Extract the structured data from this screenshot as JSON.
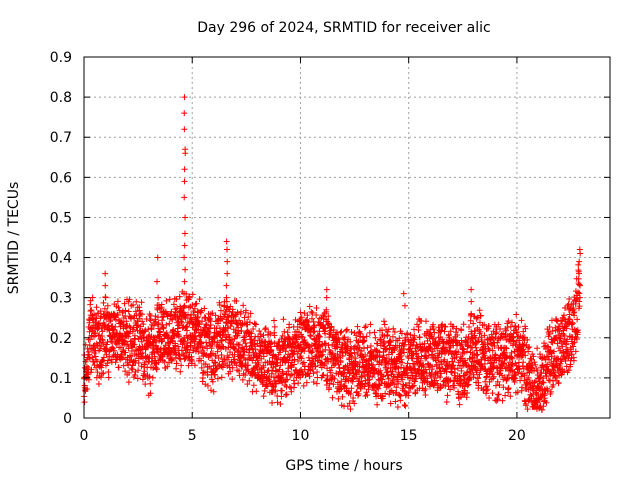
{
  "chart_data": {
    "type": "scatter",
    "title": "Day 296 of 2024, SRMTID for receiver alic",
    "xlabel": "GPS time / hours",
    "ylabel": "SRMTID / TECUs",
    "xlim": [
      0,
      24.3
    ],
    "ylim": [
      0,
      0.9
    ],
    "xticks": [
      0,
      5,
      10,
      15,
      20
    ],
    "yticks": [
      0,
      0.1,
      0.2,
      0.3,
      0.4,
      0.5,
      0.6,
      0.7,
      0.8,
      0.9
    ],
    "grid": true,
    "marker": "plus",
    "series": [
      {
        "name": "SRMTID",
        "color": "#ff0000",
        "segments": [
          [
            0.0,
            0.07
          ],
          [
            0.3,
            0.22
          ],
          [
            0.6,
            0.18
          ],
          [
            1.0,
            0.2
          ],
          [
            1.5,
            0.21
          ],
          [
            2.0,
            0.19
          ],
          [
            2.5,
            0.2
          ],
          [
            3.0,
            0.16
          ],
          [
            3.5,
            0.21
          ],
          [
            4.0,
            0.2
          ],
          [
            4.5,
            0.22
          ],
          [
            5.0,
            0.24
          ],
          [
            5.5,
            0.18
          ],
          [
            6.0,
            0.16
          ],
          [
            6.5,
            0.22
          ],
          [
            7.0,
            0.19
          ],
          [
            7.5,
            0.17
          ],
          [
            8.0,
            0.15
          ],
          [
            8.5,
            0.14
          ],
          [
            9.0,
            0.13
          ],
          [
            9.5,
            0.15
          ],
          [
            10.0,
            0.18
          ],
          [
            10.5,
            0.17
          ],
          [
            11.0,
            0.18
          ],
          [
            11.5,
            0.15
          ],
          [
            12.0,
            0.12
          ],
          [
            12.5,
            0.13
          ],
          [
            13.0,
            0.14
          ],
          [
            13.5,
            0.13
          ],
          [
            14.0,
            0.15
          ],
          [
            14.5,
            0.12
          ],
          [
            15.0,
            0.14
          ],
          [
            15.5,
            0.15
          ],
          [
            16.0,
            0.15
          ],
          [
            16.5,
            0.14
          ],
          [
            17.0,
            0.14
          ],
          [
            17.5,
            0.13
          ],
          [
            18.0,
            0.17
          ],
          [
            18.5,
            0.16
          ],
          [
            19.0,
            0.14
          ],
          [
            19.5,
            0.15
          ],
          [
            20.0,
            0.17
          ],
          [
            20.5,
            0.12
          ],
          [
            20.8,
            0.05
          ],
          [
            21.0,
            0.09
          ],
          [
            21.5,
            0.15
          ],
          [
            22.0,
            0.16
          ],
          [
            22.5,
            0.21
          ],
          [
            22.9,
            0.3
          ]
        ],
        "spikes": [
          {
            "x": 4.65,
            "values": [
              0.8,
              0.76,
              0.72,
              0.67,
              0.66,
              0.62,
              0.59,
              0.55,
              0.5,
              0.46,
              0.43,
              0.4,
              0.37,
              0.34,
              0.31,
              0.28
            ]
          },
          {
            "x": 6.6,
            "values": [
              0.44,
              0.42,
              0.39,
              0.36,
              0.33,
              0.3,
              0.27
            ]
          },
          {
            "x": 3.4,
            "values": [
              0.4,
              0.34,
              0.3,
              0.27
            ]
          },
          {
            "x": 22.9,
            "values": [
              0.42,
              0.41,
              0.39,
              0.36,
              0.33,
              0.3
            ]
          },
          {
            "x": 1.0,
            "values": [
              0.36,
              0.33,
              0.3
            ]
          },
          {
            "x": 11.2,
            "values": [
              0.32,
              0.3,
              0.27
            ]
          },
          {
            "x": 14.8,
            "values": [
              0.31,
              0.28
            ]
          },
          {
            "x": 17.9,
            "values": [
              0.32,
              0.29,
              0.26
            ]
          }
        ]
      }
    ]
  }
}
